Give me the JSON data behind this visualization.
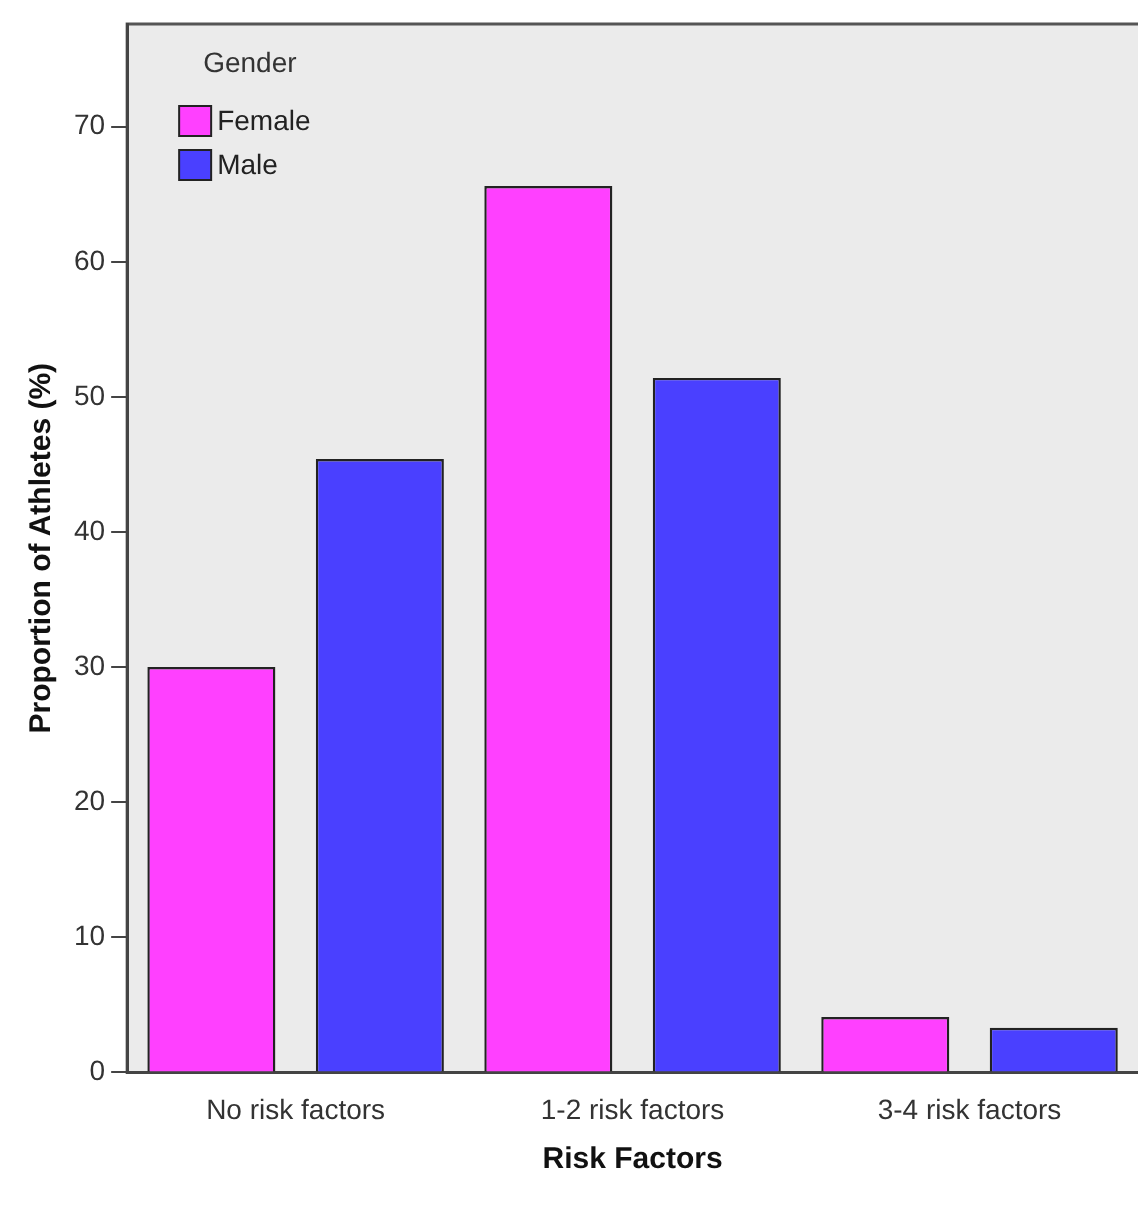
{
  "chart_data": {
    "type": "bar",
    "xlabel": "Risk Factors",
    "ylabel": "Proportion of Athletes (%)",
    "legend_title": "Gender",
    "categories": [
      "No risk factors",
      "1-2 risk factors",
      "3-4 risk factors"
    ],
    "series": [
      {
        "name": "Female",
        "color": "#ff40ff",
        "values": [
          30.0,
          65.6,
          4.1
        ]
      },
      {
        "name": "Male",
        "color": "#4a40ff",
        "values": [
          45.4,
          51.4,
          3.3
        ]
      }
    ],
    "ylim": [
      0,
      77.6
    ],
    "yticks": [
      0,
      10,
      20,
      30,
      40,
      50,
      60,
      70
    ],
    "grid": false,
    "legend": "top left"
  }
}
